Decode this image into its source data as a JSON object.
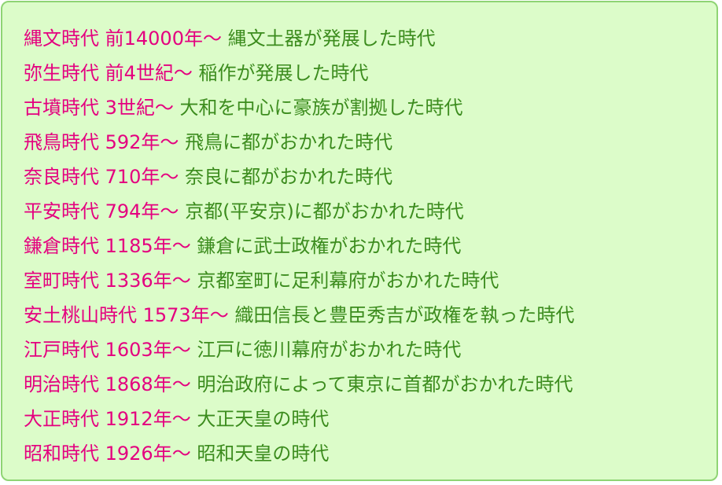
{
  "colors": {
    "era": "#e4007f",
    "description": "#3c8c1e",
    "background": "#dcfcc9",
    "border": "#8fd474"
  },
  "periods": [
    {
      "era": "縄文時代 前14000年〜",
      "description": "縄文土器が発展した時代"
    },
    {
      "era": "弥生時代 前4世紀〜",
      "description": "稲作が発展した時代"
    },
    {
      "era": "古墳時代 3世紀〜",
      "description": "大和を中心に豪族が割拠した時代"
    },
    {
      "era": "飛鳥時代 592年〜",
      "description": "飛鳥に都がおかれた時代"
    },
    {
      "era": "奈良時代 710年〜",
      "description": "奈良に都がおかれた時代"
    },
    {
      "era": "平安時代 794年〜",
      "description": "京都(平安京)に都がおかれた時代"
    },
    {
      "era": "鎌倉時代 1185年〜",
      "description": "鎌倉に武士政権がおかれた時代"
    },
    {
      "era": "室町時代 1336年〜",
      "description": "京都室町に足利幕府がおかれた時代"
    },
    {
      "era": "安土桃山時代 1573年〜",
      "description": "織田信長と豊臣秀吉が政権を執った時代"
    },
    {
      "era": "江戸時代 1603年〜",
      "description": "江戸に徳川幕府がおかれた時代"
    },
    {
      "era": "明治時代 1868年〜",
      "description": "明治政府によって東京に首都がおかれた時代"
    },
    {
      "era": "大正時代 1912年〜",
      "description": "大正天皇の時代"
    },
    {
      "era": "昭和時代 1926年〜",
      "description": "昭和天皇の時代"
    }
  ]
}
